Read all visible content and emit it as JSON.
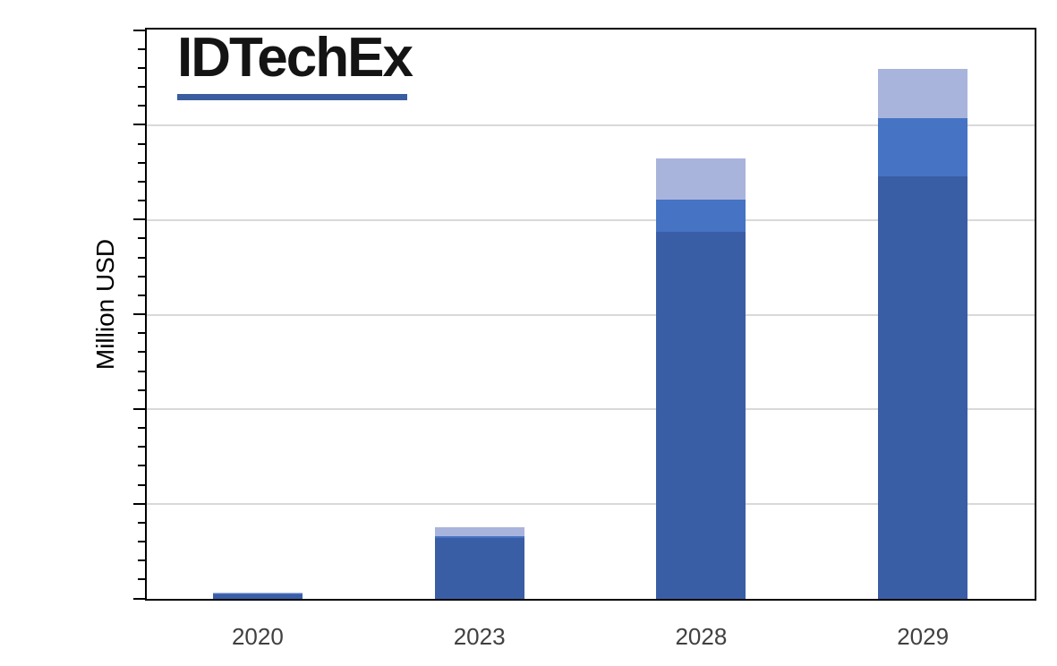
{
  "logo": {
    "text": "IDTechEx",
    "underline_color": "#3A5DA0"
  },
  "colors": {
    "segment_dark": "#3A5EA6",
    "segment_medium": "#4673C4",
    "segment_light": "#A9B4DC",
    "gridline": "#D9D9D9",
    "axis_frame": "#000000",
    "x_label_text": "#404040",
    "y_label_text": "#000000"
  },
  "chart_data": {
    "type": "bar",
    "stacked": true,
    "title": "",
    "categories": [
      "2020",
      "2023",
      "2028",
      "2029"
    ],
    "series": [
      {
        "name": "bottom-segment-dark-blue",
        "color": "#3A5EA6",
        "values": [
          5,
          64,
          387,
          446
        ]
      },
      {
        "name": "middle-segment-medium-blue",
        "color": "#4673C4",
        "values": [
          0.5,
          2,
          34,
          61
        ]
      },
      {
        "name": "top-segment-light-blue",
        "color": "#A9B4DC",
        "values": [
          1.5,
          10,
          44,
          52
        ]
      }
    ],
    "totals_estimated": [
      7,
      76,
      465,
      559
    ],
    "xlabel": "",
    "ylabel": "Million USD",
    "ylim": [
      0,
      600
    ],
    "major_gridline_interval": 100,
    "minor_ticks_per_major_interval": 4,
    "y_tick_labels": "",
    "legend": "",
    "units_note": "y-axis has no visible numeric labels; values estimated in arbitrary units where one major gridline interval = 100"
  }
}
